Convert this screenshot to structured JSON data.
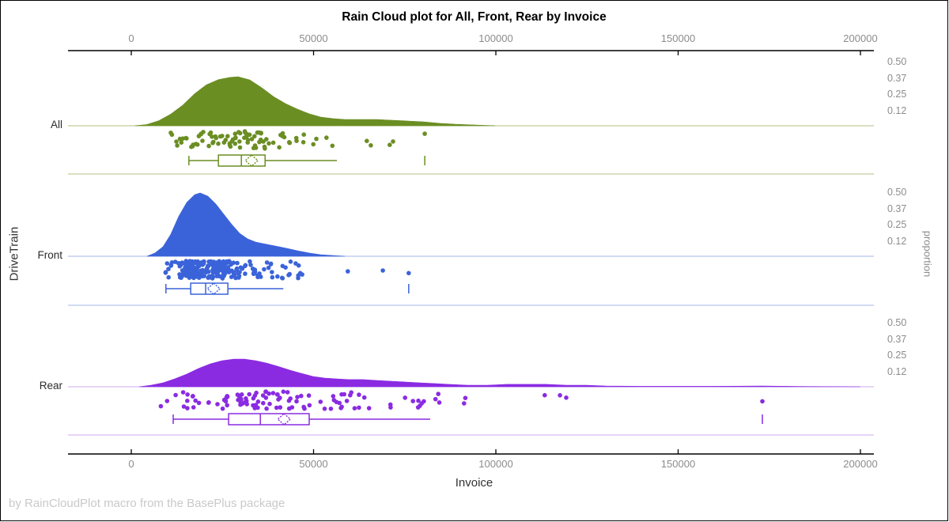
{
  "title": "Rain Cloud plot for All, Front, Rear by Invoice",
  "footer": "by RainCloudPlot macro from the BasePlus package",
  "x_axis": {
    "label": "Invoice",
    "tick_values": [
      0,
      50000,
      100000,
      150000,
      200000
    ],
    "tick_labels": [
      "0",
      "50000",
      "100000",
      "150000",
      "200000"
    ]
  },
  "y_axis_left": {
    "label": "DriveTrain",
    "categories": [
      "All",
      "Front",
      "Rear"
    ]
  },
  "y_axis_right": {
    "label": "proportion",
    "tick_labels": [
      "0.50",
      "0.37",
      "0.25",
      "0.12"
    ],
    "tick_values": [
      0.5,
      0.37,
      0.25,
      0.12
    ]
  },
  "chart_data": {
    "type": "raincloud",
    "x_variable": "Invoice",
    "group_variable": "DriveTrain",
    "x_range": [
      0,
      200000
    ],
    "proportion_ticks": [
      0.12,
      0.25,
      0.37,
      0.5
    ],
    "groups": [
      {
        "name": "All",
        "color": "#6b8e23",
        "light_color": "#c2cc9b",
        "n_points": 92,
        "box": {
          "whisker_low": 15800,
          "q1": 23900,
          "median": 30200,
          "mean": 33000,
          "q3": 36700,
          "whisker_high": 56400,
          "outliers": [
            80500
          ]
        },
        "density": [
          [
            1000,
            0
          ],
          [
            4300,
            0.01
          ],
          [
            7600,
            0.04
          ],
          [
            10800,
            0.09
          ],
          [
            14100,
            0.16
          ],
          [
            17400,
            0.25
          ],
          [
            20600,
            0.32
          ],
          [
            23900,
            0.36
          ],
          [
            27100,
            0.378
          ],
          [
            29300,
            0.383
          ],
          [
            32500,
            0.358
          ],
          [
            35800,
            0.296
          ],
          [
            39000,
            0.228
          ],
          [
            42300,
            0.173
          ],
          [
            45500,
            0.13
          ],
          [
            48800,
            0.093
          ],
          [
            52000,
            0.068
          ],
          [
            55300,
            0.056
          ],
          [
            58600,
            0.049
          ],
          [
            62900,
            0.049
          ],
          [
            67200,
            0.049
          ],
          [
            71600,
            0.043
          ],
          [
            75900,
            0.037
          ],
          [
            80200,
            0.031
          ],
          [
            84600,
            0.019
          ],
          [
            88900,
            0.012
          ],
          [
            94300,
            0.006
          ],
          [
            99800,
            0
          ]
        ],
        "points_max": 57500,
        "extra_points": [
          64600,
          65700,
          70900,
          71800,
          80500
        ],
        "jitter_seed": 101
      },
      {
        "name": "Front",
        "color": "#3b63d9",
        "light_color": "#b7c5ee",
        "n_points": 226,
        "box": {
          "whisker_low": 9500,
          "q1": 16300,
          "median": 20400,
          "mean": 22600,
          "q3": 26500,
          "whisker_high": 41700,
          "outliers": [
            76100
          ]
        },
        "density": [
          [
            4300,
            0
          ],
          [
            6500,
            0.025
          ],
          [
            8700,
            0.074
          ],
          [
            10800,
            0.17
          ],
          [
            13000,
            0.31
          ],
          [
            15200,
            0.42
          ],
          [
            17400,
            0.48
          ],
          [
            18900,
            0.494
          ],
          [
            21000,
            0.469
          ],
          [
            23200,
            0.407
          ],
          [
            25400,
            0.327
          ],
          [
            27600,
            0.247
          ],
          [
            29700,
            0.179
          ],
          [
            31900,
            0.136
          ],
          [
            34100,
            0.111
          ],
          [
            36200,
            0.099
          ],
          [
            38400,
            0.086
          ],
          [
            40600,
            0.074
          ],
          [
            42700,
            0.062
          ],
          [
            45600,
            0.043
          ],
          [
            48800,
            0.025
          ],
          [
            52000,
            0.012
          ],
          [
            55300,
            0.006
          ],
          [
            58600,
            0
          ]
        ],
        "points_max": 47000,
        "extra_points": [
          59400,
          69000,
          76100
        ],
        "jitter_seed": 202
      },
      {
        "name": "Rear",
        "color": "#8a2be2",
        "light_color": "#d6bcf0",
        "n_points": 110,
        "box": {
          "whisker_low": 11500,
          "q1": 26700,
          "median": 35400,
          "mean": 41900,
          "q3": 48800,
          "whisker_high": 82000,
          "outliers": [
            173100
          ]
        },
        "density": [
          [
            2200,
            0
          ],
          [
            5400,
            0.012
          ],
          [
            8700,
            0.031
          ],
          [
            11900,
            0.062
          ],
          [
            15200,
            0.099
          ],
          [
            18400,
            0.142
          ],
          [
            21700,
            0.179
          ],
          [
            24900,
            0.204
          ],
          [
            28200,
            0.216
          ],
          [
            31000,
            0.216
          ],
          [
            34100,
            0.204
          ],
          [
            37100,
            0.185
          ],
          [
            40100,
            0.16
          ],
          [
            43400,
            0.13
          ],
          [
            46600,
            0.105
          ],
          [
            49900,
            0.08
          ],
          [
            53100,
            0.068
          ],
          [
            56400,
            0.062
          ],
          [
            59700,
            0.056
          ],
          [
            63600,
            0.056
          ],
          [
            67500,
            0.049
          ],
          [
            71400,
            0.043
          ],
          [
            75300,
            0.037
          ],
          [
            79200,
            0.031
          ],
          [
            83100,
            0.025
          ],
          [
            87000,
            0.019
          ],
          [
            92200,
            0.012
          ],
          [
            97600,
            0.012
          ],
          [
            103000,
            0.019
          ],
          [
            108500,
            0.019
          ],
          [
            113900,
            0.019
          ],
          [
            119300,
            0.012
          ],
          [
            124700,
            0.012
          ],
          [
            130100,
            0.006
          ],
          [
            140000,
            0.004
          ],
          [
            160000,
            0.004
          ],
          [
            173000,
            0.006
          ],
          [
            185000,
            0.002
          ],
          [
            200000,
            0
          ]
        ],
        "points_max": 100000,
        "extra_points": [
          113400,
          117600,
          119300,
          173100
        ],
        "jitter_seed": 303
      }
    ]
  }
}
